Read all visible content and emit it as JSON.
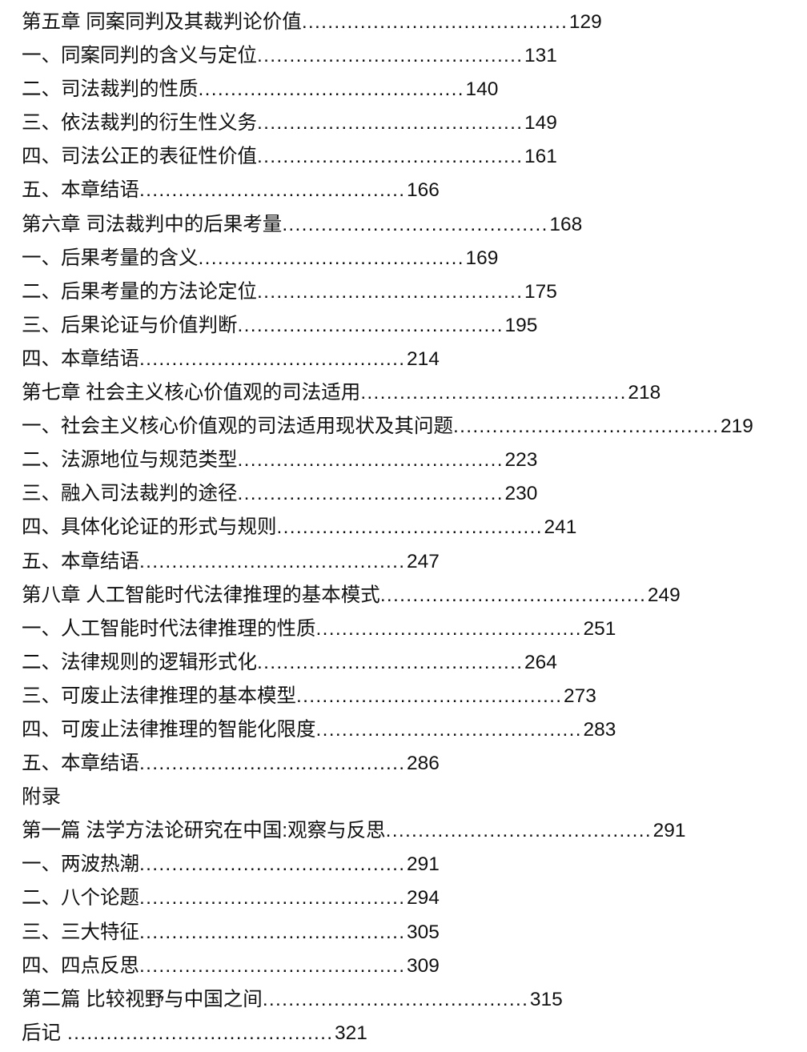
{
  "leader": "..............................................................",
  "entries": [
    {
      "title": "第五章 同案同判及其裁判论价值",
      "page": "129"
    },
    {
      "title": "一、同案同判的含义与定位",
      "page": "131"
    },
    {
      "title": "二、司法裁判的性质",
      "page": "140"
    },
    {
      "title": "三、依法裁判的衍生性义务",
      "page": "149"
    },
    {
      "title": "四、司法公正的表征性价值",
      "page": "161"
    },
    {
      "title": "五、本章结语",
      "page": "166"
    },
    {
      "title": "第六章 司法裁判中的后果考量",
      "page": "168"
    },
    {
      "title": "一、后果考量的含义",
      "page": "169"
    },
    {
      "title": "二、后果考量的方法论定位",
      "page": "175"
    },
    {
      "title": "三、后果论证与价值判断",
      "page": "195"
    },
    {
      "title": "四、本章结语",
      "page": "214"
    },
    {
      "title": "第七章 社会主义核心价值观的司法适用",
      "page": "218"
    },
    {
      "title": "一、社会主义核心价值观的司法适用现状及其问题",
      "page": "219"
    },
    {
      "title": "二、法源地位与规范类型",
      "page": "223"
    },
    {
      "title": "三、融入司法裁判的途径",
      "page": "230"
    },
    {
      "title": "四、具体化论证的形式与规则",
      "page": "241"
    },
    {
      "title": "五、本章结语",
      "page": "247"
    },
    {
      "title": "第八章 人工智能时代法律推理的基本模式",
      "page": "249"
    },
    {
      "title": "一、人工智能时代法律推理的性质",
      "page": "251"
    },
    {
      "title": "二、法律规则的逻辑形式化",
      "page": "264"
    },
    {
      "title": "三、可废止法律推理的基本模型",
      "page": "273"
    },
    {
      "title": "四、可废止法律推理的智能化限度",
      "page": "283"
    },
    {
      "title": "五、本章结语",
      "page": "286"
    },
    {
      "title": "附录",
      "page": ""
    },
    {
      "title": "第一篇 法学方法论研究在中国:观察与反思",
      "page": "291"
    },
    {
      "title": "一、两波热潮",
      "page": "291"
    },
    {
      "title": "二、八个论题",
      "page": "294"
    },
    {
      "title": "三、三大特征",
      "page": "305"
    },
    {
      "title": "四、四点反思",
      "page": "309"
    },
    {
      "title": "第二篇 比较视野与中国之间",
      "page": "315"
    },
    {
      "title": "后记",
      "page": "321"
    }
  ]
}
